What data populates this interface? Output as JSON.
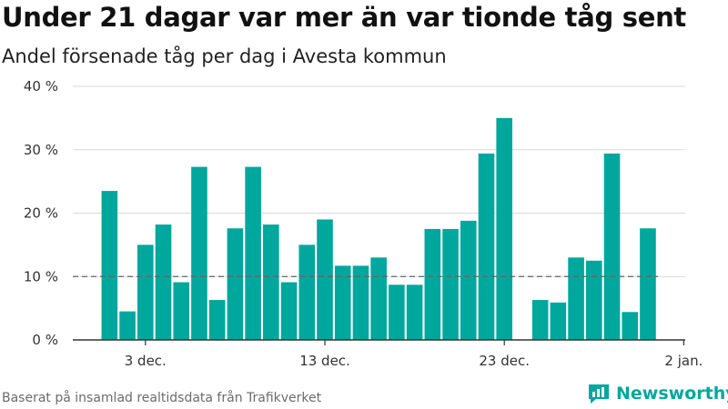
{
  "header": {
    "title": "Under 21 dagar var mer än var tionde tåg sent",
    "subtitle": "Andel försenade tåg per dag i Avesta kommun"
  },
  "footer": {
    "source": "Baserat på insamlad realtidsdata från Trafikverket",
    "brand": "Newsworthy",
    "brand_icon": "bar-chart-logo-icon"
  },
  "colors": {
    "bar": "#00a79d",
    "reference_line": "#666666",
    "grid": "#d9d9d9",
    "axis": "#333333",
    "brand": "#00a79d"
  },
  "chart_data": {
    "type": "bar",
    "title": "Under 21 dagar var mer än var tionde tåg sent",
    "subtitle": "Andel försenade tåg per dag i Avesta kommun",
    "xlabel": "",
    "ylabel": "",
    "x_start_date": "2018-12-01",
    "ylim": [
      0,
      40
    ],
    "yticks": [
      0,
      10,
      20,
      30,
      40
    ],
    "ytick_labels": [
      "0 %",
      "10 %",
      "20 %",
      "30 %",
      "40 %"
    ],
    "xticks": [
      {
        "date": "2018-12-03",
        "label": "3 dec."
      },
      {
        "date": "2018-12-13",
        "label": "13 dec."
      },
      {
        "date": "2018-12-23",
        "label": "23 dec."
      },
      {
        "date": "2019-01-02",
        "label": "2 jan."
      }
    ],
    "reference_line": {
      "value": 10,
      "style": "dashed"
    },
    "grid": true,
    "legend": "none",
    "values": [
      23.5,
      4.5,
      15.0,
      18.2,
      9.1,
      27.3,
      6.3,
      17.6,
      27.3,
      18.2,
      9.1,
      15.0,
      19.0,
      11.7,
      11.7,
      13.0,
      8.7,
      8.7,
      17.5,
      17.5,
      18.8,
      29.4,
      35.0,
      null,
      6.3,
      5.9,
      13.0,
      12.5,
      29.4,
      4.4,
      17.6
    ]
  }
}
